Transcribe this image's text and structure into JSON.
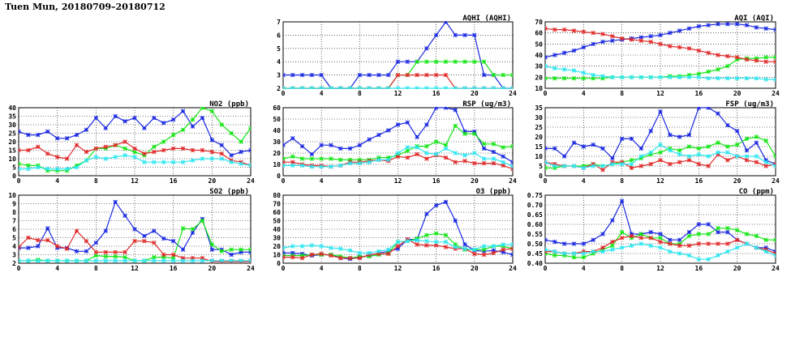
{
  "page_title": "Tuen Mun, 20180709–20180712",
  "colors": {
    "blue": "#1a28e0",
    "green": "#14e614",
    "red": "#e02a2a",
    "cyan": "#2ee6f0"
  },
  "chart_data": [
    {
      "id": "no2",
      "type": "line",
      "title": "NO2 (ppb)",
      "xlim": [
        0,
        24
      ],
      "xticks": [
        0,
        4,
        8,
        12,
        16,
        20,
        24
      ],
      "ylim": [
        0,
        40
      ],
      "yticks": [
        0,
        5,
        10,
        15,
        20,
        25,
        30,
        35,
        40
      ],
      "series": [
        {
          "name": "blue",
          "values": [
            26,
            24,
            24,
            26,
            22,
            22,
            24,
            27,
            34,
            28,
            35,
            32,
            34,
            28,
            34,
            31,
            33,
            38,
            29,
            34,
            21,
            18,
            12,
            14,
            15
          ]
        },
        {
          "name": "green",
          "values": [
            7,
            6,
            6,
            3,
            3,
            3,
            6,
            9,
            16,
            16,
            18,
            16,
            14,
            12,
            17,
            20,
            24,
            27,
            33,
            40,
            38,
            30,
            25,
            20,
            28
          ]
        },
        {
          "name": "red",
          "values": [
            15,
            15,
            17,
            13,
            11,
            10,
            18,
            14,
            16,
            17,
            18,
            20,
            16,
            13,
            14,
            15,
            16,
            16,
            15,
            15,
            14,
            13,
            9,
            8,
            6
          ]
        },
        {
          "name": "cyan",
          "values": [
            4,
            4,
            5,
            4,
            4,
            4,
            5,
            9,
            11,
            10,
            11,
            12,
            11,
            8,
            8,
            8,
            8,
            8,
            9,
            10,
            10,
            10,
            8,
            7,
            6
          ]
        }
      ]
    },
    {
      "id": "so2",
      "type": "line",
      "title": "SO2 (ppb)",
      "xlim": [
        0,
        24
      ],
      "xticks": [
        0,
        4,
        8,
        12,
        16,
        20,
        24
      ],
      "ylim": [
        2,
        10
      ],
      "yticks": [
        2,
        3,
        4,
        5,
        6,
        7,
        8,
        9,
        10
      ],
      "series": [
        {
          "name": "blue",
          "values": [
            3.8,
            3.8,
            4,
            6.1,
            3.8,
            3.8,
            3.4,
            3.4,
            4.4,
            5.8,
            9.2,
            7.6,
            6,
            5.2,
            5.8,
            4.9,
            4.6,
            3.6,
            5.6,
            7.2,
            3.6,
            3.6,
            3,
            3.3,
            3.3
          ]
        },
        {
          "name": "green",
          "values": [
            2.3,
            2.3,
            2.4,
            2.3,
            2.3,
            2.3,
            2.3,
            2.3,
            2.9,
            2.8,
            2.8,
            2.7,
            2.3,
            2.3,
            2.7,
            2.7,
            2.6,
            6.1,
            6,
            7,
            4.2,
            3.4,
            3.6,
            3.6,
            3.6
          ]
        },
        {
          "name": "red",
          "values": [
            3.9,
            5,
            4.7,
            4.7,
            4,
            3.7,
            5.8,
            4.6,
            3.3,
            3.3,
            3.3,
            3.3,
            4.6,
            4.6,
            4.4,
            3,
            3,
            2.6,
            2.6,
            2.6,
            2.2,
            2.2,
            2.2,
            2.2,
            2.2
          ]
        },
        {
          "name": "cyan",
          "values": [
            2.3,
            2.3,
            2.3,
            2.3,
            2.3,
            2.3,
            2.3,
            2.3,
            2.3,
            2.3,
            2.3,
            2.3,
            2.3,
            2.3,
            2.3,
            2.3,
            2.3,
            2.3,
            2.3,
            2.3,
            2.3,
            2.3,
            2.3,
            2.3,
            2.3
          ]
        }
      ]
    },
    {
      "id": "aqhi",
      "type": "line",
      "title": "AQHI (AQHI)",
      "xlim": [
        0,
        24
      ],
      "xticks": [
        0,
        4,
        8,
        12,
        16,
        20,
        24
      ],
      "ylim": [
        2,
        7
      ],
      "yticks": [
        2,
        3,
        4,
        5,
        6,
        7
      ],
      "series": [
        {
          "name": "blue",
          "values": [
            3,
            3,
            3,
            3,
            3,
            2,
            2,
            2,
            3,
            3,
            3,
            3,
            4,
            4,
            4,
            5,
            6,
            7,
            6,
            6,
            6,
            3,
            3,
            2,
            2
          ]
        },
        {
          "name": "green",
          "values": [
            2,
            2,
            2,
            2,
            2,
            2,
            2,
            2,
            2,
            2,
            2,
            2,
            3,
            3,
            4,
            4,
            4,
            4,
            4,
            4,
            4,
            4,
            3,
            3,
            3
          ]
        },
        {
          "name": "red",
          "values": [
            2,
            2,
            2,
            2,
            2,
            2,
            2,
            2,
            2,
            2,
            2,
            2,
            3,
            3,
            3,
            3,
            3,
            3,
            2,
            2,
            2,
            2,
            2,
            2,
            2
          ]
        },
        {
          "name": "cyan",
          "values": [
            2,
            2,
            2,
            2,
            2,
            2,
            2,
            2,
            2,
            2,
            2,
            2,
            2,
            2,
            2,
            2,
            2,
            2,
            2,
            2,
            2,
            2,
            2,
            2,
            2
          ]
        }
      ]
    },
    {
      "id": "rsp",
      "type": "line",
      "title": "RSP (ug/m3)",
      "xlim": [
        0,
        24
      ],
      "xticks": [
        0,
        4,
        8,
        12,
        16,
        20,
        24
      ],
      "ylim": [
        0,
        60
      ],
      "yticks": [
        0,
        10,
        20,
        30,
        40,
        50,
        60
      ],
      "series": [
        {
          "name": "blue",
          "values": [
            27,
            33,
            26,
            19,
            27,
            27,
            24,
            24,
            27,
            32,
            36,
            40,
            45,
            47,
            34,
            45,
            60,
            60,
            58,
            39,
            39,
            24,
            21,
            17,
            12
          ]
        },
        {
          "name": "green",
          "values": [
            15,
            17,
            15,
            15,
            15,
            15,
            14,
            14,
            14,
            14,
            16,
            16,
            18,
            22,
            26,
            26,
            30,
            27,
            44,
            37,
            37,
            28,
            28,
            25,
            26
          ]
        },
        {
          "name": "red",
          "values": [
            12,
            12,
            10,
            9,
            9,
            8,
            9,
            12,
            12,
            13,
            14,
            13,
            17,
            16,
            19,
            15,
            18,
            16,
            12,
            13,
            11,
            11,
            11,
            9,
            6
          ]
        },
        {
          "name": "cyan",
          "values": [
            9,
            9,
            9,
            8,
            8,
            8,
            9,
            11,
            11,
            12,
            14,
            14,
            20,
            25,
            25,
            20,
            19,
            24,
            20,
            18,
            20,
            15,
            15,
            12,
            8
          ]
        }
      ]
    },
    {
      "id": "o3",
      "type": "line",
      "title": "O3 (ppb)",
      "xlim": [
        0,
        24
      ],
      "xticks": [
        0,
        4,
        8,
        12,
        16,
        20,
        24
      ],
      "ylim": [
        0,
        80
      ],
      "yticks": [
        0,
        10,
        20,
        30,
        40,
        50,
        60,
        70,
        80
      ],
      "series": [
        {
          "name": "blue",
          "values": [
            12,
            12,
            11,
            9,
            10,
            10,
            6,
            5,
            7,
            9,
            12,
            14,
            17,
            28,
            28,
            58,
            68,
            72,
            50,
            22,
            15,
            14,
            15,
            13,
            10
          ]
        },
        {
          "name": "green",
          "values": [
            9,
            9,
            9,
            10,
            10,
            10,
            8,
            6,
            8,
            8,
            10,
            12,
            25,
            26,
            29,
            33,
            35,
            33,
            22,
            16,
            16,
            16,
            20,
            20,
            17
          ]
        },
        {
          "name": "red",
          "values": [
            7,
            7,
            6,
            10,
            11,
            9,
            6,
            6,
            6,
            10,
            11,
            11,
            20,
            28,
            22,
            21,
            21,
            19,
            17,
            17,
            11,
            10,
            12,
            16,
            17
          ]
        },
        {
          "name": "cyan",
          "values": [
            18,
            20,
            20,
            21,
            20,
            18,
            17,
            15,
            12,
            12,
            14,
            16,
            25,
            26,
            27,
            26,
            25,
            25,
            19,
            17,
            16,
            20,
            20,
            22,
            22
          ]
        }
      ]
    },
    {
      "id": "aqi",
      "type": "line",
      "title": "AQI (AQI)",
      "xlim": [
        0,
        24
      ],
      "xticks": [
        0,
        4,
        8,
        12,
        16,
        20,
        24
      ],
      "ylim": [
        10,
        70
      ],
      "yticks": [
        10,
        20,
        30,
        40,
        50,
        60,
        70
      ],
      "series": [
        {
          "name": "blue",
          "values": [
            38,
            40,
            42,
            44,
            47,
            50,
            52,
            53,
            54,
            55,
            56,
            57,
            58,
            60,
            62,
            64,
            66,
            67,
            68,
            68,
            68,
            67,
            65,
            64,
            63
          ]
        },
        {
          "name": "green",
          "values": [
            19,
            19,
            19,
            19,
            19,
            19,
            19,
            20,
            20,
            20,
            20,
            20,
            20,
            21,
            21,
            22,
            23,
            25,
            27,
            30,
            36,
            37,
            37,
            38,
            38
          ]
        },
        {
          "name": "red",
          "values": [
            64,
            63,
            63,
            62,
            61,
            60,
            59,
            57,
            55,
            54,
            53,
            52,
            50,
            48,
            47,
            46,
            44,
            42,
            40,
            39,
            38,
            36,
            35,
            34,
            34
          ]
        },
        {
          "name": "cyan",
          "values": [
            30,
            28,
            27,
            26,
            24,
            22,
            21,
            20,
            20,
            20,
            20,
            20,
            20,
            20,
            20,
            20,
            20,
            19,
            19,
            19,
            19,
            19,
            19,
            18,
            18
          ]
        }
      ]
    },
    {
      "id": "fsp",
      "type": "line",
      "title": "FSP (ug/m3)",
      "xlim": [
        0,
        24
      ],
      "xticks": [
        0,
        4,
        8,
        12,
        16,
        20,
        24
      ],
      "ylim": [
        0,
        35
      ],
      "yticks": [
        0,
        5,
        10,
        15,
        20,
        25,
        30,
        35
      ],
      "series": [
        {
          "name": "blue",
          "values": [
            14,
            14,
            10,
            17,
            15,
            16,
            14,
            9,
            19,
            19,
            14,
            23,
            33,
            21,
            20,
            21,
            35,
            35,
            32,
            26,
            23,
            13,
            17,
            8,
            6
          ]
        },
        {
          "name": "green",
          "values": [
            4,
            4,
            5,
            5,
            5,
            6,
            5,
            6,
            7,
            8,
            9,
            11,
            12,
            14,
            13,
            15,
            14,
            15,
            17,
            15,
            16,
            19,
            20,
            18,
            10
          ]
        },
        {
          "name": "red",
          "values": [
            7,
            6,
            5,
            5,
            4,
            6,
            3,
            7,
            7,
            4,
            5,
            6,
            8,
            6,
            7,
            8,
            6,
            5,
            11,
            8,
            10,
            8,
            7,
            5,
            6
          ]
        },
        {
          "name": "cyan",
          "values": [
            7,
            5,
            5,
            5,
            4,
            5,
            5,
            6,
            6,
            6,
            10,
            12,
            16,
            13,
            11,
            10,
            11,
            10,
            12,
            12,
            10,
            10,
            10,
            7,
            5
          ]
        }
      ]
    },
    {
      "id": "co",
      "type": "line",
      "title": "CO (ppm)",
      "xlim": [
        0,
        24
      ],
      "xticks": [
        0,
        4,
        8,
        12,
        16,
        20,
        24
      ],
      "ylim": [
        0.4,
        0.75
      ],
      "yticks": [
        0.4,
        0.45,
        0.5,
        0.55,
        0.6,
        0.65,
        0.7,
        0.75
      ],
      "series": [
        {
          "name": "blue",
          "values": [
            0.52,
            0.51,
            0.5,
            0.5,
            0.5,
            0.52,
            0.55,
            0.62,
            0.72,
            0.55,
            0.55,
            0.56,
            0.55,
            0.52,
            0.52,
            0.56,
            0.6,
            0.6,
            0.56,
            0.56,
            0.52,
            0.5,
            0.48,
            0.48,
            0.46
          ]
        },
        {
          "name": "green",
          "values": [
            0.45,
            0.44,
            0.44,
            0.43,
            0.43,
            0.45,
            0.47,
            0.49,
            0.56,
            0.53,
            0.55,
            0.53,
            0.53,
            0.5,
            0.5,
            0.54,
            0.55,
            0.55,
            0.58,
            0.58,
            0.57,
            0.55,
            0.54,
            0.52,
            0.52
          ]
        },
        {
          "name": "red",
          "values": [
            0.46,
            0.46,
            0.45,
            0.45,
            0.46,
            0.46,
            0.48,
            0.51,
            0.53,
            0.54,
            0.53,
            0.53,
            0.51,
            0.5,
            0.49,
            0.49,
            0.5,
            0.5,
            0.5,
            0.5,
            0.52,
            0.5,
            0.48,
            0.47,
            0.45
          ]
        },
        {
          "name": "cyan",
          "values": [
            0.47,
            0.46,
            0.45,
            0.45,
            0.45,
            0.46,
            0.46,
            0.47,
            0.48,
            0.49,
            0.5,
            0.49,
            0.48,
            0.46,
            0.45,
            0.44,
            0.42,
            0.42,
            0.44,
            0.46,
            0.48,
            0.5,
            0.48,
            0.46,
            0.44
          ]
        }
      ]
    }
  ]
}
